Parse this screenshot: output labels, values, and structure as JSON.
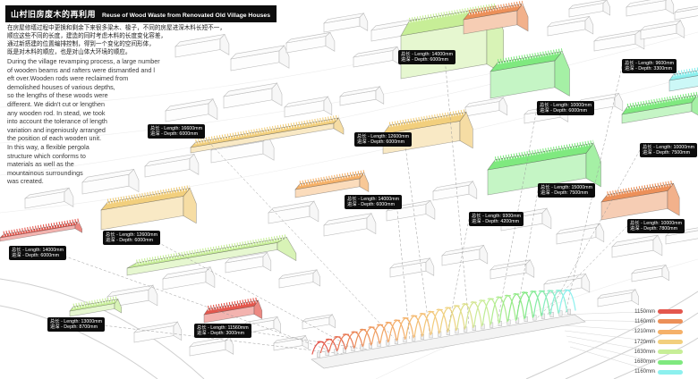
{
  "title": {
    "zh": "山村旧房废木的再利用",
    "en": "Reuse of Wood Waste from Renovated Old Village Houses"
  },
  "intro": {
    "zh_lines": [
      "在房屋修缮过程中更换和剩余下来很多梁木、椽子，不同的房屋进深木料长短不一，",
      "顺应这些不同的长度，建造的同时考虑木料的长度变化容差，",
      "通过新搭建的位置编排控制，得到一个变化的空间形体，",
      "既是对木料的顺应，也是对山体大环境的顺应。"
    ],
    "en_lines": [
      "During the village revamping process, a large number",
      "of wooden beams and rafters were dismantled and l",
      "eft over.Wooden rods were reclaimed from",
      "demolished houses of various depths,",
      "so the lengths of these woods were",
      "different. We didn't cut or lengthen",
      "any wooden rod. In stead, we took",
      "into account the tolerance of length",
      "variation and ingeniously arranged",
      "the position of each wooden unit.",
      "In this way, a flexible pergola",
      "structure which conforms to",
      "materials as well as the",
      "mountainous surroundings",
      "was created."
    ]
  },
  "labels": [
    {
      "line1": "总长 - Length: 16600mm",
      "line2": "进深 - Depth:  6000mm"
    },
    {
      "line1": "总长 - Length: 12600mm",
      "line2": "进深 - Depth:  6000mm"
    },
    {
      "line1": "总长 - Length: 10000mm",
      "line2": "进深 - Depth:  6000mm"
    },
    {
      "line1": "总长 - Length: 9600mm",
      "line2": "进深 - Depth:  3300mm"
    },
    {
      "line1": "总长 - Length: 14000mm",
      "line2": "进深 - Depth:  6000mm"
    },
    {
      "line1": "总长 - Length: 10000mm",
      "line2": "进深 - Depth:  7500mm"
    },
    {
      "line1": "总长 - Length: 15000mm",
      "line2": "进深 - Depth:  7500mm"
    },
    {
      "line1": "总长 - Length: 10000mm",
      "line2": "进深 - Depth:  7800mm"
    },
    {
      "line1": "总长 - Length: 14000mm",
      "line2": "进深 - Depth:  6000mm"
    },
    {
      "line1": "总长 - Length: 9300mm",
      "line2": "进深 - Depth:  4200mm"
    },
    {
      "line1": "总长 - Length: 12600mm",
      "line2": "进深 - Depth:  6000mm"
    },
    {
      "line1": "总长 - Length: 14000mm",
      "line2": "进深 - Depth:  6000mm"
    },
    {
      "line1": "总长 - Length: 13000mm",
      "line2": "进深 - Depth:  8700mm"
    },
    {
      "line1": "总长 - Length: 11560mm",
      "line2": "进深 - Depth:  3000mm"
    }
  ],
  "legend": {
    "items": [
      {
        "label": "1150mm",
        "color": "#e4574d"
      },
      {
        "label": "1160mm",
        "color": "#ec9059"
      },
      {
        "label": "1210mm",
        "color": "#f5b169"
      },
      {
        "label": "1720mm",
        "color": "#f2cf7d"
      },
      {
        "label": "1630mm",
        "color": "#c7ee97"
      },
      {
        "label": "1680mm",
        "color": "#7fe97f"
      },
      {
        "label": "1160mm",
        "color": "#8df0ee"
      }
    ]
  }
}
